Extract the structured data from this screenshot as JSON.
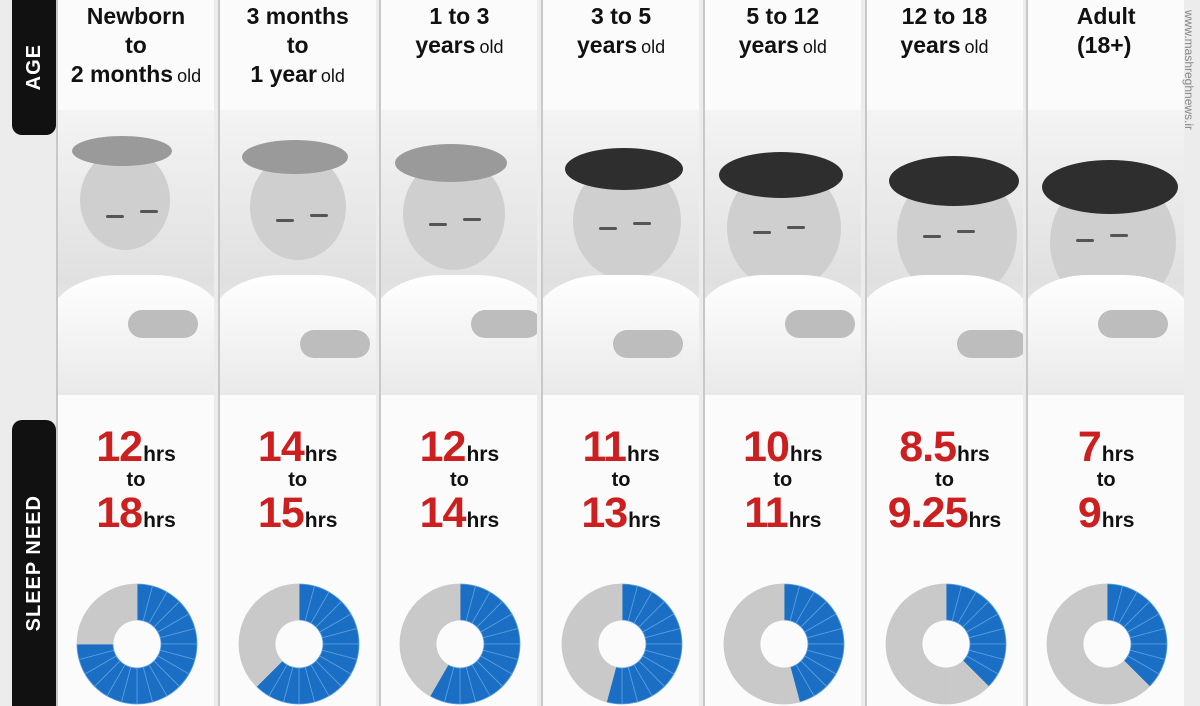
{
  "labels": {
    "age": "AGE",
    "sleep_need": "SLEEP NEED",
    "unit": "hrs",
    "to": "to"
  },
  "colors": {
    "accent_red": "#cc1f1f",
    "ring_blue": "#1a6fc4",
    "ring_grey": "#c9c9c9"
  },
  "watermark": "www.mashreghnews.ir",
  "columns": [
    {
      "age_line1": "Newborn",
      "age_line2": "to",
      "age_line3": "2 months",
      "age_suffix": "old",
      "min": "12",
      "max": "18",
      "ring_fraction": 0.75,
      "photo": "sleeping-newborn"
    },
    {
      "age_line1": "3 months",
      "age_line2": "to",
      "age_line3": "1 year",
      "age_suffix": "old",
      "min": "14",
      "max": "15",
      "ring_fraction": 0.625,
      "photo": "sleeping-infant"
    },
    {
      "age_line1": "1 to 3",
      "age_line2": "years",
      "age_line3": "",
      "age_suffix": "old",
      "min": "12",
      "max": "14",
      "ring_fraction": 0.583,
      "photo": "sleeping-toddler"
    },
    {
      "age_line1": "3 to 5",
      "age_line2": "years",
      "age_line3": "",
      "age_suffix": "old",
      "min": "11",
      "max": "13",
      "ring_fraction": 0.542,
      "photo": "sleeping-child"
    },
    {
      "age_line1": "5 to 12",
      "age_line2": "years",
      "age_line3": "",
      "age_suffix": "old",
      "min": "10",
      "max": "11",
      "ring_fraction": 0.458,
      "photo": "sleeping-boy"
    },
    {
      "age_line1": "12 to 18",
      "age_line2": "years",
      "age_line3": "",
      "age_suffix": "old",
      "min": "8.5",
      "max": "9.25",
      "ring_fraction": 0.385,
      "photo": "sleeping-teen"
    },
    {
      "age_line1": "Adult",
      "age_line2": "(18+)",
      "age_line3": "",
      "age_suffix": "",
      "min": "7",
      "max": "9",
      "ring_fraction": 0.375,
      "photo": "sleeping-adult"
    }
  ]
}
